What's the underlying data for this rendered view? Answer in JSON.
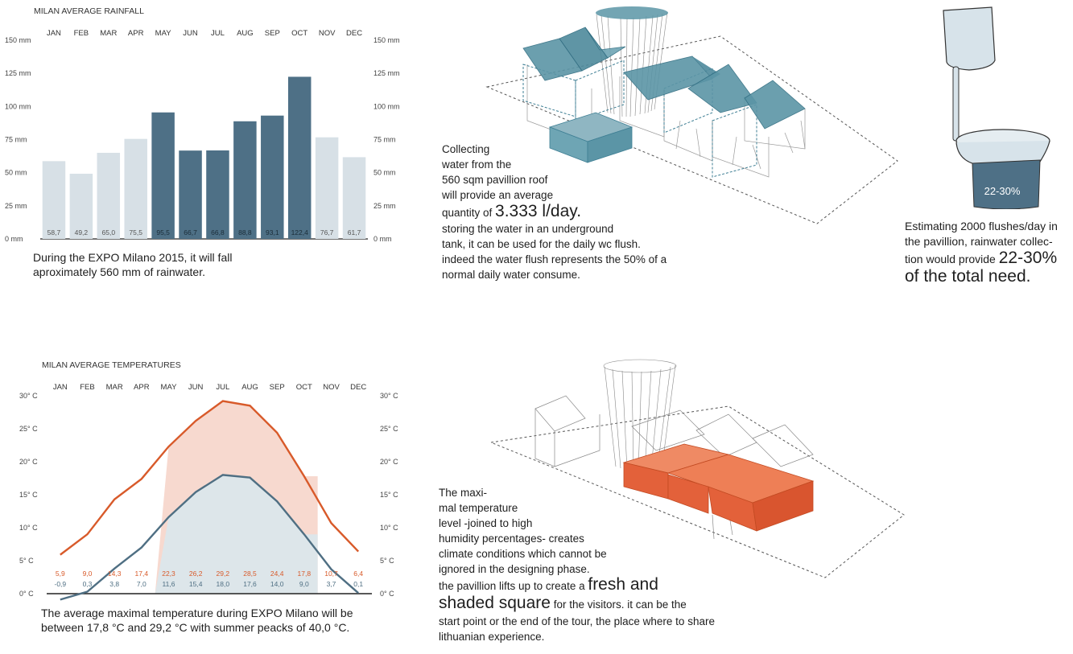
{
  "rainfall": {
    "chart_data": {
      "type": "bar",
      "title": "MILAN AVERAGE RAINFALL",
      "categories": [
        "JAN",
        "FEB",
        "MAR",
        "APR",
        "MAY",
        "JUN",
        "JUL",
        "AUG",
        "SEP",
        "OCT",
        "NOV",
        "DEC"
      ],
      "values": [
        58.7,
        49.2,
        65.0,
        75.5,
        95.5,
        66.7,
        66.8,
        88.8,
        93.1,
        122.4,
        76.7,
        61.7
      ],
      "value_labels": [
        "58,7",
        "49,2",
        "65,0",
        "75,5",
        "95,5",
        "66,7",
        "66,8",
        "88,8",
        "93,1",
        "122,4",
        "76,7",
        "61,7"
      ],
      "highlight": [
        false,
        false,
        false,
        false,
        true,
        true,
        true,
        true,
        true,
        true,
        false,
        false
      ],
      "yticks": [
        0,
        25,
        50,
        75,
        100,
        125,
        150
      ],
      "ytick_labels": [
        "0 mm",
        "25 mm",
        "50 mm",
        "75 mm",
        "100 mm",
        "125 mm",
        "150 mm"
      ],
      "ylim": [
        0,
        150
      ],
      "xlabel": "",
      "ylabel": ""
    },
    "caption_lines": [
      "During the EXPO Milano 2015, it will fall",
      "aproximately 560 mm of rainwater."
    ]
  },
  "temperature": {
    "chart_data": {
      "type": "line",
      "title": "MILAN AVERAGE TEMPERATURES",
      "categories": [
        "JAN",
        "FEB",
        "MAR",
        "APR",
        "MAY",
        "JUN",
        "JUL",
        "AUG",
        "SEP",
        "OCT",
        "NOV",
        "DEC"
      ],
      "series": [
        {
          "name": "max",
          "values": [
            5.9,
            9.0,
            14.3,
            17.4,
            22.3,
            26.2,
            29.2,
            28.5,
            24.4,
            17.8,
            10.7,
            6.4
          ],
          "labels": [
            "5,9",
            "9,0",
            "14,3",
            "17,4",
            "22,3",
            "26,2",
            "29,2",
            "28,5",
            "24,4",
            "17,8",
            "10,7",
            "6,4"
          ]
        },
        {
          "name": "min",
          "values": [
            -0.9,
            0.3,
            3.8,
            7.0,
            11.6,
            15.4,
            18.0,
            17.6,
            14.0,
            9.0,
            3.7,
            0.1
          ],
          "labels": [
            "-0,9",
            "0,3",
            "3,8",
            "7,0",
            "11,6",
            "15,4",
            "18,0",
            "17,6",
            "14,0",
            "9,0",
            "3,7",
            "0,1"
          ]
        }
      ],
      "shaded_months": [
        "MAY",
        "OCT"
      ],
      "yticks": [
        0,
        5,
        10,
        15,
        20,
        25,
        30
      ],
      "ytick_labels": [
        "0° C",
        "5° C",
        "10° C",
        "15° C",
        "20° C",
        "25° C",
        "30° C"
      ],
      "ylim": [
        0,
        30
      ],
      "xlabel": "",
      "ylabel": ""
    },
    "caption_lines": [
      "The average maximal temperature during EXPO Milano will be",
      "between 17,8 °C and 29,2 °C with summer peacks of 40,0 °C."
    ]
  },
  "water_text": {
    "lines": [
      "Collecting",
      "water from the",
      "560 sqm pavillion roof",
      "will provide an average"
    ],
    "qty_prefix": "quantity of ",
    "qty_value": "3.333 l/day.",
    "rest_lines": [
      "storing the water in an underground",
      "tank, it can be used for the daily wc flush.",
      "indeed the water flush represents the 50% of a",
      "normal daily water consume."
    ]
  },
  "toilet": {
    "tank_label": "22-30%",
    "lines": [
      "Estimating 2000 flushes/day in",
      "the pavillion, rainwater collec-"
    ],
    "line3_prefix": "tion would provide ",
    "line3_big": "22-30%",
    "line4_big": "of the total need."
  },
  "heat_text": {
    "lines": [
      "The maxi-",
      "mal temperature",
      "level -joined to high",
      "humidity percentages- creates",
      "climate conditions which cannot be",
      "ignored in the designing phase."
    ],
    "line7_prefix": "the pavillion lifts up to create a ",
    "line7_big": "fresh and",
    "line8_big": "shaded square",
    "line8_suffix": " for the visitors. it can be the",
    "rest_lines": [
      "start point or the end of the tour, the place where to share",
      "lithuanian experience."
    ]
  },
  "colors": {
    "bar_light": "#d7e0e6",
    "bar_dark": "#4e7086",
    "temp_max": "#d85a2a",
    "temp_min": "#4f6f83",
    "shade_max": "#f7d9cf",
    "shade_min": "#dde6ea",
    "roof_blue": "#5b95a6",
    "roof_orange": "#e3613a"
  }
}
